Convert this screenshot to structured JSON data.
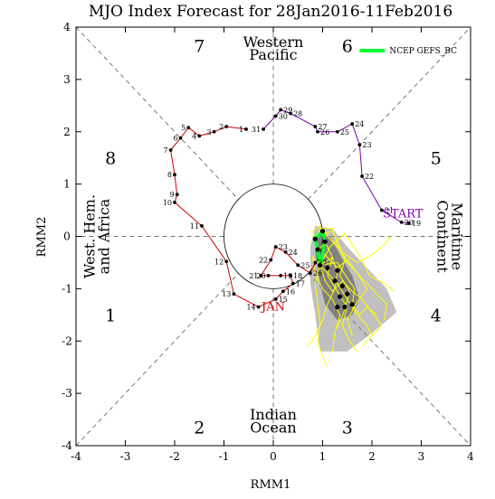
{
  "chart_data": {
    "type": "line",
    "title": "MJO Index Forecast for 28Jan2016-11Feb2016",
    "xlabel": "RMM1",
    "ylabel": "RMM2",
    "xlim": [
      -4,
      4
    ],
    "ylim": [
      -4,
      4
    ],
    "x_ticks": [
      "-4",
      "-3",
      "-2",
      "-1",
      "0",
      "1",
      "2",
      "3",
      "4"
    ],
    "y_ticks": [
      "-4",
      "-3",
      "-2",
      "-1",
      "0",
      "1",
      "2",
      "3",
      "4"
    ],
    "grid": "dashed phase dividers and unit circle",
    "legend": {
      "position": "top-right",
      "label": "NCEP GEFS_BC",
      "color": "#00ff33"
    },
    "phase_numbers": [
      {
        "phase": "1",
        "x": -3.3,
        "y": -1.5
      },
      {
        "phase": "2",
        "x": -1.5,
        "y": -3.65
      },
      {
        "phase": "3",
        "x": 1.5,
        "y": -3.65
      },
      {
        "phase": "4",
        "x": 3.3,
        "y": -1.5
      },
      {
        "phase": "5",
        "x": 3.3,
        "y": 1.5
      },
      {
        "phase": "6",
        "x": 1.5,
        "y": 3.65
      },
      {
        "phase": "7",
        "x": -1.5,
        "y": 3.65
      },
      {
        "phase": "8",
        "x": -3.3,
        "y": 1.5
      }
    ],
    "region_labels": {
      "top": [
        "Western",
        "Pacific"
      ],
      "bottom": [
        "Indian",
        "Ocean"
      ],
      "left": [
        "West. Hem.",
        "and Africa"
      ],
      "right": [
        "Maritime",
        "Continent"
      ]
    },
    "annotations": {
      "start": "START",
      "jan": "JAN"
    },
    "colors": {
      "dec": "#7b00ad",
      "jan": "#cc0000",
      "forecast": "#00ff33",
      "members": "#ffff00",
      "spread_outer": "#c0c0c0",
      "spread_inner": "#808080"
    },
    "series": [
      {
        "name": "",
        "color": "#7b00ad",
        "points": [
          {
            "label": "19",
            "x": 2.75,
            "y": 0.25
          },
          {
            "label": "20",
            "x": 2.6,
            "y": 0.27
          },
          {
            "label": "21",
            "x": 2.2,
            "y": 0.5
          },
          {
            "label": "22",
            "x": 1.8,
            "y": 1.15
          },
          {
            "label": "23",
            "x": 1.75,
            "y": 1.75
          },
          {
            "label": "24",
            "x": 1.6,
            "y": 2.15
          },
          {
            "label": "25",
            "x": 1.3,
            "y": 2.0
          },
          {
            "label": "26",
            "x": 0.9,
            "y": 2.0
          },
          {
            "label": "27",
            "x": 0.85,
            "y": 2.1
          },
          {
            "label": "28",
            "x": 0.35,
            "y": 2.35
          },
          {
            "label": "29",
            "x": 0.15,
            "y": 2.42
          },
          {
            "label": "30",
            "x": 0.05,
            "y": 2.3
          },
          {
            "label": "31",
            "x": -0.2,
            "y": 2.05
          }
        ]
      },
      {
        "name": "",
        "color": "#cc0000",
        "points": [
          {
            "label": "1",
            "x": -0.55,
            "y": 2.05
          },
          {
            "label": "2",
            "x": -0.95,
            "y": 2.1
          },
          {
            "label": "3",
            "x": -1.2,
            "y": 2.0
          },
          {
            "label": "4",
            "x": -1.5,
            "y": 1.92
          },
          {
            "label": "5",
            "x": -1.72,
            "y": 2.08
          },
          {
            "label": "6",
            "x": -1.88,
            "y": 1.88
          },
          {
            "label": "7",
            "x": -2.08,
            "y": 1.65
          },
          {
            "label": "8",
            "x": -2.0,
            "y": 1.18
          },
          {
            "label": "9",
            "x": -1.95,
            "y": 0.8
          },
          {
            "label": "10",
            "x": -2.0,
            "y": 0.65
          },
          {
            "label": "11",
            "x": -1.45,
            "y": 0.2
          },
          {
            "label": "12",
            "x": -0.95,
            "y": -0.48
          },
          {
            "label": "13",
            "x": -0.8,
            "y": -1.1
          },
          {
            "label": "14",
            "x": -0.3,
            "y": -1.35
          },
          {
            "label": "15",
            "x": 0.05,
            "y": -1.2
          },
          {
            "label": "16",
            "x": 0.2,
            "y": -1.05
          },
          {
            "label": "17",
            "x": 0.4,
            "y": -0.9
          },
          {
            "label": "18",
            "x": 0.35,
            "y": -0.75
          },
          {
            "label": "19",
            "x": 0.15,
            "y": -0.75
          },
          {
            "label": "20",
            "x": -0.1,
            "y": -0.75
          },
          {
            "label": "21",
            "x": -0.25,
            "y": -0.75
          },
          {
            "label": "22",
            "x": -0.05,
            "y": -0.45
          },
          {
            "label": "23",
            "x": 0.05,
            "y": -0.2
          },
          {
            "label": "24",
            "x": 0.25,
            "y": -0.3
          },
          {
            "label": "25",
            "x": 0.5,
            "y": -0.55
          },
          {
            "label": "26",
            "x": 0.75,
            "y": -0.7
          },
          {
            "label": "27",
            "x": 0.85,
            "y": -0.5
          }
        ]
      },
      {
        "name": "NCEP GEFS_BC",
        "color": "#00ff33",
        "points": [
          {
            "x": 0.95,
            "y": -0.5
          },
          {
            "x": 0.9,
            "y": -0.25
          },
          {
            "x": 0.85,
            "y": -0.05
          },
          {
            "x": 1.0,
            "y": 0.1
          },
          {
            "x": 1.05,
            "y": -0.1
          },
          {
            "x": 1.0,
            "y": -0.35
          },
          {
            "x": 0.95,
            "y": -0.55
          }
        ]
      }
    ],
    "ensemble_markers": [
      {
        "x": 0.95,
        "y": -0.55
      },
      {
        "x": 0.9,
        "y": -0.25
      },
      {
        "x": 0.85,
        "y": -0.05
      },
      {
        "x": 1.0,
        "y": 0.1
      },
      {
        "x": 1.05,
        "y": -0.1
      },
      {
        "x": 1.3,
        "y": -0.65
      },
      {
        "x": 1.4,
        "y": -0.95
      },
      {
        "x": 1.35,
        "y": -1.15
      },
      {
        "x": 1.3,
        "y": -1.35
      },
      {
        "x": 1.45,
        "y": -1.35
      },
      {
        "x": 1.6,
        "y": -1.3
      },
      {
        "x": 1.25,
        "y": -0.85
      },
      {
        "x": 1.1,
        "y": -0.6
      },
      {
        "x": 1.5,
        "y": -1.1
      }
    ],
    "spread_outer": [
      {
        "x": 0.75,
        "y": -0.2
      },
      {
        "x": 0.85,
        "y": 0.2
      },
      {
        "x": 1.2,
        "y": 0.15
      },
      {
        "x": 1.5,
        "y": -0.2
      },
      {
        "x": 1.9,
        "y": -0.6
      },
      {
        "x": 2.3,
        "y": -1.0
      },
      {
        "x": 2.5,
        "y": -1.45
      },
      {
        "x": 2.0,
        "y": -1.85
      },
      {
        "x": 1.5,
        "y": -2.2
      },
      {
        "x": 0.95,
        "y": -2.2
      },
      {
        "x": 0.85,
        "y": -1.5
      },
      {
        "x": 0.75,
        "y": -0.9
      }
    ],
    "spread_inner": [
      {
        "x": 0.85,
        "y": -0.3
      },
      {
        "x": 0.9,
        "y": 0.05
      },
      {
        "x": 1.15,
        "y": 0.0
      },
      {
        "x": 1.35,
        "y": -0.35
      },
      {
        "x": 1.6,
        "y": -0.75
      },
      {
        "x": 1.75,
        "y": -1.2
      },
      {
        "x": 1.6,
        "y": -1.5
      },
      {
        "x": 1.3,
        "y": -1.6
      },
      {
        "x": 1.05,
        "y": -1.3
      },
      {
        "x": 0.95,
        "y": -0.9
      }
    ],
    "ensemble_members": [
      [
        {
          "x": 0.95,
          "y": -0.55
        },
        {
          "x": 0.9,
          "y": -0.2
        },
        {
          "x": 0.8,
          "y": 0.1
        },
        {
          "x": 0.95,
          "y": 0.2
        },
        {
          "x": 1.1,
          "y": 0.0
        },
        {
          "x": 1.4,
          "y": -0.3
        },
        {
          "x": 1.7,
          "y": -0.5
        },
        {
          "x": 2.0,
          "y": -0.35
        },
        {
          "x": 2.2,
          "y": -0.2
        },
        {
          "x": 2.4,
          "y": 0.0
        }
      ],
      [
        {
          "x": 0.95,
          "y": -0.55
        },
        {
          "x": 1.0,
          "y": -0.3
        },
        {
          "x": 1.05,
          "y": 0.05
        },
        {
          "x": 1.2,
          "y": 0.1
        },
        {
          "x": 1.35,
          "y": -0.2
        },
        {
          "x": 1.5,
          "y": -0.5
        },
        {
          "x": 1.8,
          "y": -0.8
        },
        {
          "x": 2.1,
          "y": -1.1
        },
        {
          "x": 2.3,
          "y": -1.3
        },
        {
          "x": 2.25,
          "y": -1.6
        }
      ],
      [
        {
          "x": 0.95,
          "y": -0.55
        },
        {
          "x": 1.1,
          "y": -0.7
        },
        {
          "x": 1.3,
          "y": -0.9
        },
        {
          "x": 1.5,
          "y": -1.2
        },
        {
          "x": 1.7,
          "y": -1.5
        },
        {
          "x": 1.9,
          "y": -1.7
        },
        {
          "x": 2.0,
          "y": -1.9
        },
        {
          "x": 1.8,
          "y": -2.1
        }
      ],
      [
        {
          "x": 0.95,
          "y": -0.55
        },
        {
          "x": 0.85,
          "y": -0.9
        },
        {
          "x": 0.9,
          "y": -1.3
        },
        {
          "x": 0.95,
          "y": -1.7
        },
        {
          "x": 0.9,
          "y": -2.0
        },
        {
          "x": 1.0,
          "y": -2.3
        },
        {
          "x": 1.1,
          "y": -2.5
        }
      ],
      [
        {
          "x": 0.95,
          "y": -0.55
        },
        {
          "x": 1.2,
          "y": -0.4
        },
        {
          "x": 1.3,
          "y": -0.7
        },
        {
          "x": 1.25,
          "y": -1.0
        },
        {
          "x": 1.1,
          "y": -1.3
        },
        {
          "x": 1.0,
          "y": -1.6
        },
        {
          "x": 0.85,
          "y": -1.9
        },
        {
          "x": 0.7,
          "y": -2.1
        }
      ],
      [
        {
          "x": 0.95,
          "y": -0.55
        },
        {
          "x": 1.3,
          "y": -0.5
        },
        {
          "x": 1.5,
          "y": -0.8
        },
        {
          "x": 1.65,
          "y": -1.0
        },
        {
          "x": 1.6,
          "y": -1.3
        },
        {
          "x": 1.75,
          "y": -1.5
        },
        {
          "x": 1.9,
          "y": -1.35
        },
        {
          "x": 2.1,
          "y": -1.5
        }
      ],
      [
        {
          "x": 0.95,
          "y": -0.55
        },
        {
          "x": 0.9,
          "y": -0.3
        },
        {
          "x": 1.05,
          "y": -0.1
        },
        {
          "x": 1.2,
          "y": -0.4
        },
        {
          "x": 1.1,
          "y": -0.75
        },
        {
          "x": 1.3,
          "y": -1.05
        },
        {
          "x": 1.5,
          "y": -1.35
        },
        {
          "x": 1.4,
          "y": -1.7
        },
        {
          "x": 1.55,
          "y": -2.0
        },
        {
          "x": 1.7,
          "y": -2.2
        }
      ],
      [
        {
          "x": 0.95,
          "y": -0.55
        },
        {
          "x": 0.8,
          "y": -0.4
        },
        {
          "x": 0.85,
          "y": -0.7
        },
        {
          "x": 1.0,
          "y": -1.0
        },
        {
          "x": 1.2,
          "y": -1.2
        },
        {
          "x": 1.35,
          "y": -1.5
        },
        {
          "x": 1.25,
          "y": -1.85
        },
        {
          "x": 1.2,
          "y": -2.2
        }
      ],
      [
        {
          "x": 0.95,
          "y": -0.55
        },
        {
          "x": 1.15,
          "y": -0.2
        },
        {
          "x": 1.45,
          "y": 0.05
        },
        {
          "x": 1.6,
          "y": -0.15
        },
        {
          "x": 1.8,
          "y": -0.45
        },
        {
          "x": 1.95,
          "y": -0.75
        },
        {
          "x": 2.25,
          "y": -0.9
        },
        {
          "x": 2.45,
          "y": -1.05
        }
      ],
      [
        {
          "x": 0.95,
          "y": -0.55
        },
        {
          "x": 1.05,
          "y": -0.85
        },
        {
          "x": 1.2,
          "y": -1.05
        },
        {
          "x": 1.4,
          "y": -0.85
        },
        {
          "x": 1.6,
          "y": -1.05
        },
        {
          "x": 1.8,
          "y": -1.2
        },
        {
          "x": 2.0,
          "y": -1.45
        },
        {
          "x": 2.2,
          "y": -1.7
        },
        {
          "x": 1.95,
          "y": -1.95
        }
      ],
      [
        {
          "x": 0.95,
          "y": -0.55
        },
        {
          "x": 0.85,
          "y": -0.15
        },
        {
          "x": 0.95,
          "y": 0.15
        },
        {
          "x": 1.2,
          "y": 0.15
        },
        {
          "x": 1.3,
          "y": -0.15
        },
        {
          "x": 1.45,
          "y": -0.45
        },
        {
          "x": 1.35,
          "y": -0.75
        },
        {
          "x": 1.55,
          "y": -1.05
        },
        {
          "x": 1.45,
          "y": -1.4
        },
        {
          "x": 1.3,
          "y": -1.75
        }
      ],
      [
        {
          "x": 0.95,
          "y": -0.55
        },
        {
          "x": 1.05,
          "y": -0.35
        },
        {
          "x": 1.3,
          "y": -0.6
        },
        {
          "x": 1.5,
          "y": -0.45
        },
        {
          "x": 1.7,
          "y": -0.7
        },
        {
          "x": 1.9,
          "y": -1.0
        },
        {
          "x": 1.7,
          "y": -1.25
        },
        {
          "x": 1.5,
          "y": -1.6
        },
        {
          "x": 1.6,
          "y": -1.9
        }
      ]
    ]
  }
}
